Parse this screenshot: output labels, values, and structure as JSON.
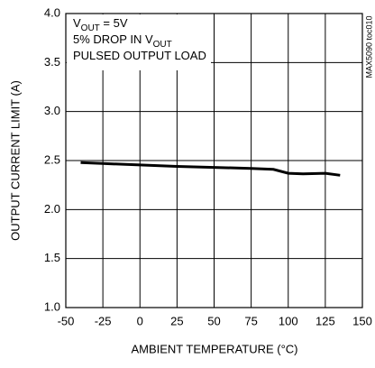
{
  "chart_data": {
    "type": "line",
    "x_label": "AMBIENT TEMPERATURE (°C)",
    "y_label": "OUTPUT CURRENT LIMIT (A)",
    "side_note": "MAX5090 toc010",
    "annotations": [
      {
        "pre": "V",
        "sub": "OUT",
        "post": " = 5V"
      },
      {
        "pre": "5% DROP IN V",
        "sub": "OUT"
      },
      {
        "pre": "PULSED OUTPUT LOAD"
      }
    ],
    "x": [
      -40,
      -25,
      0,
      25,
      50,
      75,
      90,
      100,
      110,
      125,
      135
    ],
    "series": [
      {
        "color": "#000000",
        "values": [
          2.48,
          2.47,
          2.455,
          2.44,
          2.43,
          2.42,
          2.41,
          2.37,
          2.365,
          2.37,
          2.35
        ]
      }
    ],
    "xlim": [
      -50,
      150
    ],
    "xticks": [
      -50,
      -25,
      0,
      25,
      50,
      75,
      100,
      125,
      150
    ],
    "ylim": [
      1,
      4
    ],
    "yticks": [
      {
        "value": 1,
        "label": "1.0"
      },
      1.5,
      {
        "value": 2,
        "label": "2.0"
      },
      2.5,
      {
        "value": 3,
        "label": "3.0"
      },
      3.5,
      {
        "value": 4,
        "label": "4.0"
      }
    ],
    "grid": true
  }
}
